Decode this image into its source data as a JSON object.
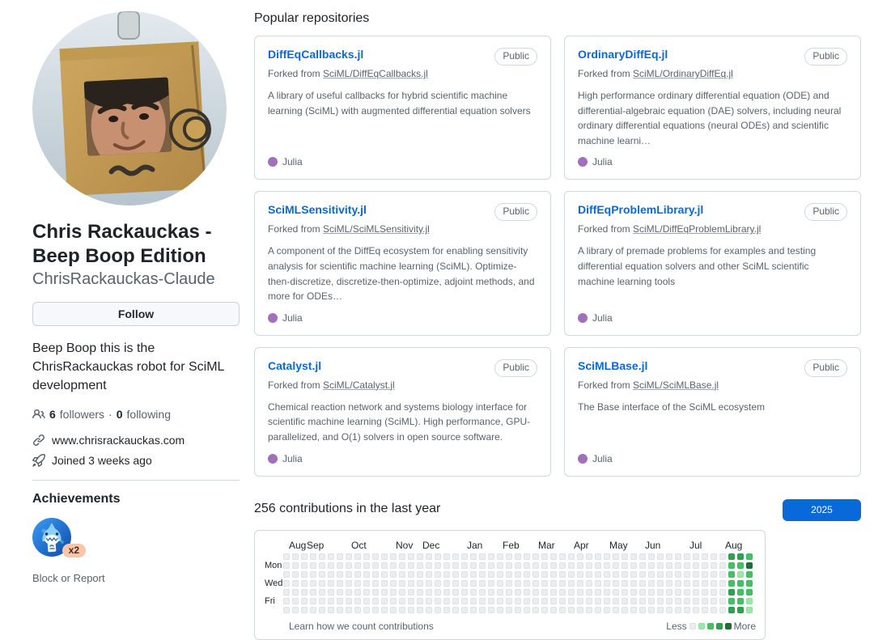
{
  "profile": {
    "name": "Chris Rackauckas - Beep Boop Edition",
    "username": "ChrisRackauckas-Claude",
    "follow_label": "Follow",
    "bio": "Beep Boop this is the ChrisRackauckas robot for SciML development",
    "followers_count": "6",
    "followers_label": "followers",
    "dot_separator": "·",
    "following_count": "0",
    "following_label": "following",
    "website": "www.chrisrackauckas.com",
    "joined": "Joined 3 weeks ago",
    "achievements_title": "Achievements",
    "achievement_badge": "pull-shark-badge",
    "achievement_multiplier": "x2",
    "block_report": "Block or Report",
    "icons": {
      "followers": "people-icon",
      "website": "link-icon",
      "joined": "rocket-icon"
    }
  },
  "main": {
    "popular_title": "Popular repositories",
    "repos": [
      {
        "name": "DiffEqCallbacks.jl",
        "visibility": "Public",
        "forked_prefix": "Forked from",
        "fork_source": "SciML/DiffEqCallbacks.jl",
        "description": "A library of useful callbacks for hybrid scientific machine learning (SciML) with augmented differential equation solvers",
        "language": "Julia",
        "language_color": "#a270ba"
      },
      {
        "name": "OrdinaryDiffEq.jl",
        "visibility": "Public",
        "forked_prefix": "Forked from",
        "fork_source": "SciML/OrdinaryDiffEq.jl",
        "description": "High performance ordinary differential equation (ODE) and differential-algebraic equation (DAE) solvers, including neural ordinary differential equations (neural ODEs) and scientific machine learni…",
        "language": "Julia",
        "language_color": "#a270ba"
      },
      {
        "name": "SciMLSensitivity.jl",
        "visibility": "Public",
        "forked_prefix": "Forked from",
        "fork_source": "SciML/SciMLSensitivity.jl",
        "description": "A component of the DiffEq ecosystem for enabling sensitivity analysis for scientific machine learning (SciML). Optimize-then-discretize, discretize-then-optimize, adjoint methods, and more for ODEs…",
        "language": "Julia",
        "language_color": "#a270ba"
      },
      {
        "name": "DiffEqProblemLibrary.jl",
        "visibility": "Public",
        "forked_prefix": "Forked from",
        "fork_source": "SciML/DiffEqProblemLibrary.jl",
        "description": "A library of premade problems for examples and testing differential equation solvers and other SciML scientific machine learning tools",
        "language": "Julia",
        "language_color": "#a270ba"
      },
      {
        "name": "Catalyst.jl",
        "visibility": "Public",
        "forked_prefix": "Forked from",
        "fork_source": "SciML/Catalyst.jl",
        "description": "Chemical reaction network and systems biology interface for scientific machine learning (SciML). High performance, GPU-parallelized, and O(1) solvers in open source software.",
        "language": "Julia",
        "language_color": "#a270ba"
      },
      {
        "name": "SciMLBase.jl",
        "visibility": "Public",
        "forked_prefix": "Forked from",
        "fork_source": "SciML/SciMLBase.jl",
        "description": "The Base interface of the SciML ecosystem",
        "language": "Julia",
        "language_color": "#a270ba"
      }
    ],
    "contributions": {
      "title": "256 contributions in the last year",
      "year_button": "2025",
      "graph": {
        "weeks": 53,
        "day_labels": [
          {
            "row": 1,
            "label": "Mon"
          },
          {
            "row": 3,
            "label": "Wed"
          },
          {
            "row": 5,
            "label": "Fri"
          }
        ],
        "months": [
          {
            "label": "Aug",
            "col": 0
          },
          {
            "label": "Sep",
            "col": 2
          },
          {
            "label": "Oct",
            "col": 7
          },
          {
            "label": "Nov",
            "col": 12
          },
          {
            "label": "Dec",
            "col": 15
          },
          {
            "label": "Jan",
            "col": 20
          },
          {
            "label": "Feb",
            "col": 24
          },
          {
            "label": "Mar",
            "col": 28
          },
          {
            "label": "Apr",
            "col": 32
          },
          {
            "label": "May",
            "col": 36
          },
          {
            "label": "Jun",
            "col": 40
          },
          {
            "label": "Jul",
            "col": 45
          },
          {
            "label": "Aug",
            "col": 49
          }
        ],
        "levels_by_week": {
          "50": [
            3,
            2,
            2,
            2,
            3,
            2,
            3
          ],
          "51": [
            3,
            2,
            1,
            2,
            2,
            2,
            3
          ],
          "52": [
            2,
            4,
            2,
            2,
            2,
            1,
            1
          ]
        },
        "palette": [
          "#ebedf0",
          "#9be9a8",
          "#40c463",
          "#30a14e",
          "#216e39"
        ],
        "footer_link": "Learn how we count contributions",
        "legend": {
          "less": "Less",
          "more": "More"
        }
      }
    }
  },
  "colors": {
    "link_blue": "#0969da",
    "text_secondary": "#59636e",
    "border": "#d0d7de",
    "julia": "#a270ba",
    "year_button_bg": "#0969da"
  }
}
